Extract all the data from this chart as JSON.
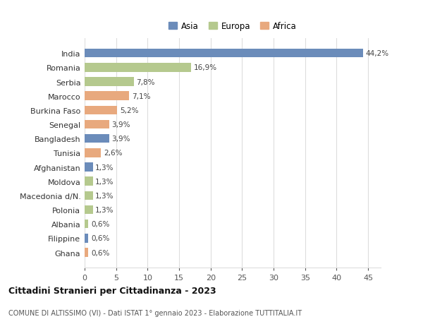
{
  "categories": [
    "India",
    "Romania",
    "Serbia",
    "Marocco",
    "Burkina Faso",
    "Senegal",
    "Bangladesh",
    "Tunisia",
    "Afghanistan",
    "Moldova",
    "Macedonia d/N.",
    "Polonia",
    "Albania",
    "Filippine",
    "Ghana"
  ],
  "values": [
    44.2,
    16.9,
    7.8,
    7.1,
    5.2,
    3.9,
    3.9,
    2.6,
    1.3,
    1.3,
    1.3,
    1.3,
    0.6,
    0.6,
    0.6
  ],
  "labels": [
    "44,2%",
    "16,9%",
    "7,8%",
    "7,1%",
    "5,2%",
    "3,9%",
    "3,9%",
    "2,6%",
    "1,3%",
    "1,3%",
    "1,3%",
    "1,3%",
    "0,6%",
    "0,6%",
    "0,6%"
  ],
  "colors": [
    "#6b8cba",
    "#b5c98e",
    "#b5c98e",
    "#e8a97e",
    "#e8a97e",
    "#e8a97e",
    "#6b8cba",
    "#e8a97e",
    "#6b8cba",
    "#b5c98e",
    "#b5c98e",
    "#b5c98e",
    "#b5c98e",
    "#6b8cba",
    "#e8a97e"
  ],
  "legend_labels": [
    "Asia",
    "Europa",
    "Africa"
  ],
  "legend_colors": [
    "#6b8cba",
    "#b5c98e",
    "#e8a97e"
  ],
  "title": "Cittadini Stranieri per Cittadinanza - 2023",
  "subtitle": "COMUNE DI ALTISSIMO (VI) - Dati ISTAT 1° gennaio 2023 - Elaborazione TUTTITALIA.IT",
  "xlim": [
    0,
    47
  ],
  "xticks": [
    0,
    5,
    10,
    15,
    20,
    25,
    30,
    35,
    40,
    45
  ],
  "background_color": "#ffffff",
  "grid_color": "#dddddd"
}
